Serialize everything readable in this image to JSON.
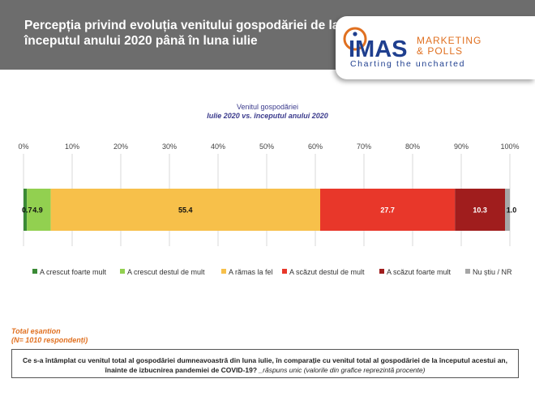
{
  "header": {
    "title_line1": "Percepția privind evoluția venitului gospodăriei de la",
    "title_line2": "începutul anului 2020 până în luna iulie"
  },
  "logo": {
    "brand": "IMAS",
    "line1": "MARKETING",
    "line2": "& POLLS",
    "tagline": "Charting the uncharted"
  },
  "chart_data": {
    "type": "bar",
    "orientation": "horizontal-stacked",
    "title": "Venitul gospodăriei",
    "subtitle": "Iulie 2020 vs. începutul anului  2020",
    "x_ticks": [
      "0%",
      "10%",
      "20%",
      "30%",
      "40%",
      "50%",
      "60%",
      "70%",
      "80%",
      "90%",
      "100%"
    ],
    "xlim": [
      0,
      100
    ],
    "grid": true,
    "legend_position": "bottom",
    "series": [
      {
        "name": "A crescut foarte mult",
        "value": 0.7,
        "label": "0.7",
        "color": "#3a8a35"
      },
      {
        "name": "A crescut destul de mult",
        "value": 4.9,
        "label": "4.9",
        "color": "#92d050"
      },
      {
        "name": "A rămas la fel",
        "value": 55.4,
        "label": "55.4",
        "color": "#f7c04a"
      },
      {
        "name": "A scăzut destul de mult",
        "value": 27.7,
        "label": "27.7",
        "color": "#e8372a"
      },
      {
        "name": "A scăzut foarte mult",
        "value": 10.3,
        "label": "10.3",
        "color": "#a01d1d"
      },
      {
        "name": "Nu știu / NR",
        "value": 1.0,
        "label": "1.0",
        "color": "#a6a6a6"
      }
    ]
  },
  "sample": {
    "line1": "Total eșantion",
    "line2": "(N= 1010 respondenți)"
  },
  "question": {
    "text": "Ce s-a întâmplat cu venitul total al gospodăriei dumneavoastră din luna iulie, în comparație cu venitul total al gospodăriei de la începutul acestui an, înainte de izbucnirea pandemiei de COVID-19?",
    "note": " _răspuns unic (valorile din grafice reprezintă procente)"
  }
}
